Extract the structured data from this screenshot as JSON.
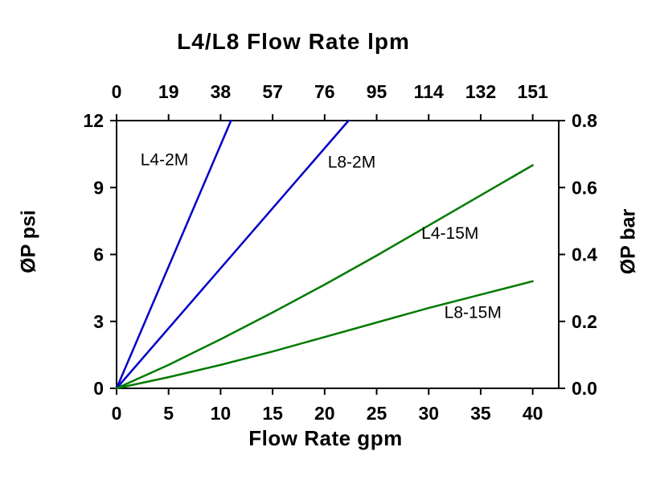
{
  "chart_data": {
    "type": "line",
    "title_top": "L4/L8  Flow Rate lpm",
    "xlabel_bottom": "Flow Rate gpm",
    "ylabel_left": "ØP psi",
    "ylabel_right": "ØP bar",
    "xlim": [
      0,
      42.5
    ],
    "ylim": [
      0,
      12
    ],
    "x_ticks_gpm": [
      0,
      5,
      10,
      15,
      20,
      25,
      30,
      35,
      40
    ],
    "x_top_labels": [
      "0",
      "19",
      "38",
      "57",
      "76",
      "95",
      "114",
      "132",
      "151"
    ],
    "y_left_ticks": [
      0,
      3,
      6,
      9,
      12
    ],
    "y_right_labels": [
      "0.0",
      "0.2",
      "0.4",
      "0.6",
      "0.8"
    ],
    "frame_color": "#000000",
    "colors": {
      "blue_2M": "#0000c8",
      "green_15M": "#007a00"
    },
    "grid": "off",
    "legend": "inline-labels",
    "series": [
      {
        "name": "L4-2M",
        "color": "#0000c8",
        "points": [
          [
            0,
            0
          ],
          [
            11,
            12
          ]
        ],
        "label_pos": [
          2.3,
          10.0
        ]
      },
      {
        "name": "L8-2M",
        "color": "#0000c8",
        "points": [
          [
            0,
            0
          ],
          [
            22.3,
            12
          ]
        ],
        "label_pos": [
          20.3,
          9.9
        ]
      },
      {
        "name": "L4-15M",
        "color": "#007a00",
        "points": [
          [
            0,
            0
          ],
          [
            5,
            1.05
          ],
          [
            10,
            2.2
          ],
          [
            15,
            3.4
          ],
          [
            20,
            4.65
          ],
          [
            25,
            5.95
          ],
          [
            30,
            7.3
          ],
          [
            35,
            8.65
          ],
          [
            40,
            10
          ]
        ],
        "label_pos": [
          29.3,
          6.7
        ]
      },
      {
        "name": "L8-15M",
        "color": "#007a00",
        "points": [
          [
            0,
            0
          ],
          [
            5,
            0.5
          ],
          [
            10,
            1.05
          ],
          [
            15,
            1.65
          ],
          [
            20,
            2.3
          ],
          [
            25,
            2.95
          ],
          [
            30,
            3.6
          ],
          [
            35,
            4.2
          ],
          [
            40,
            4.8
          ]
        ],
        "label_pos": [
          31.5,
          3.15
        ]
      }
    ]
  }
}
